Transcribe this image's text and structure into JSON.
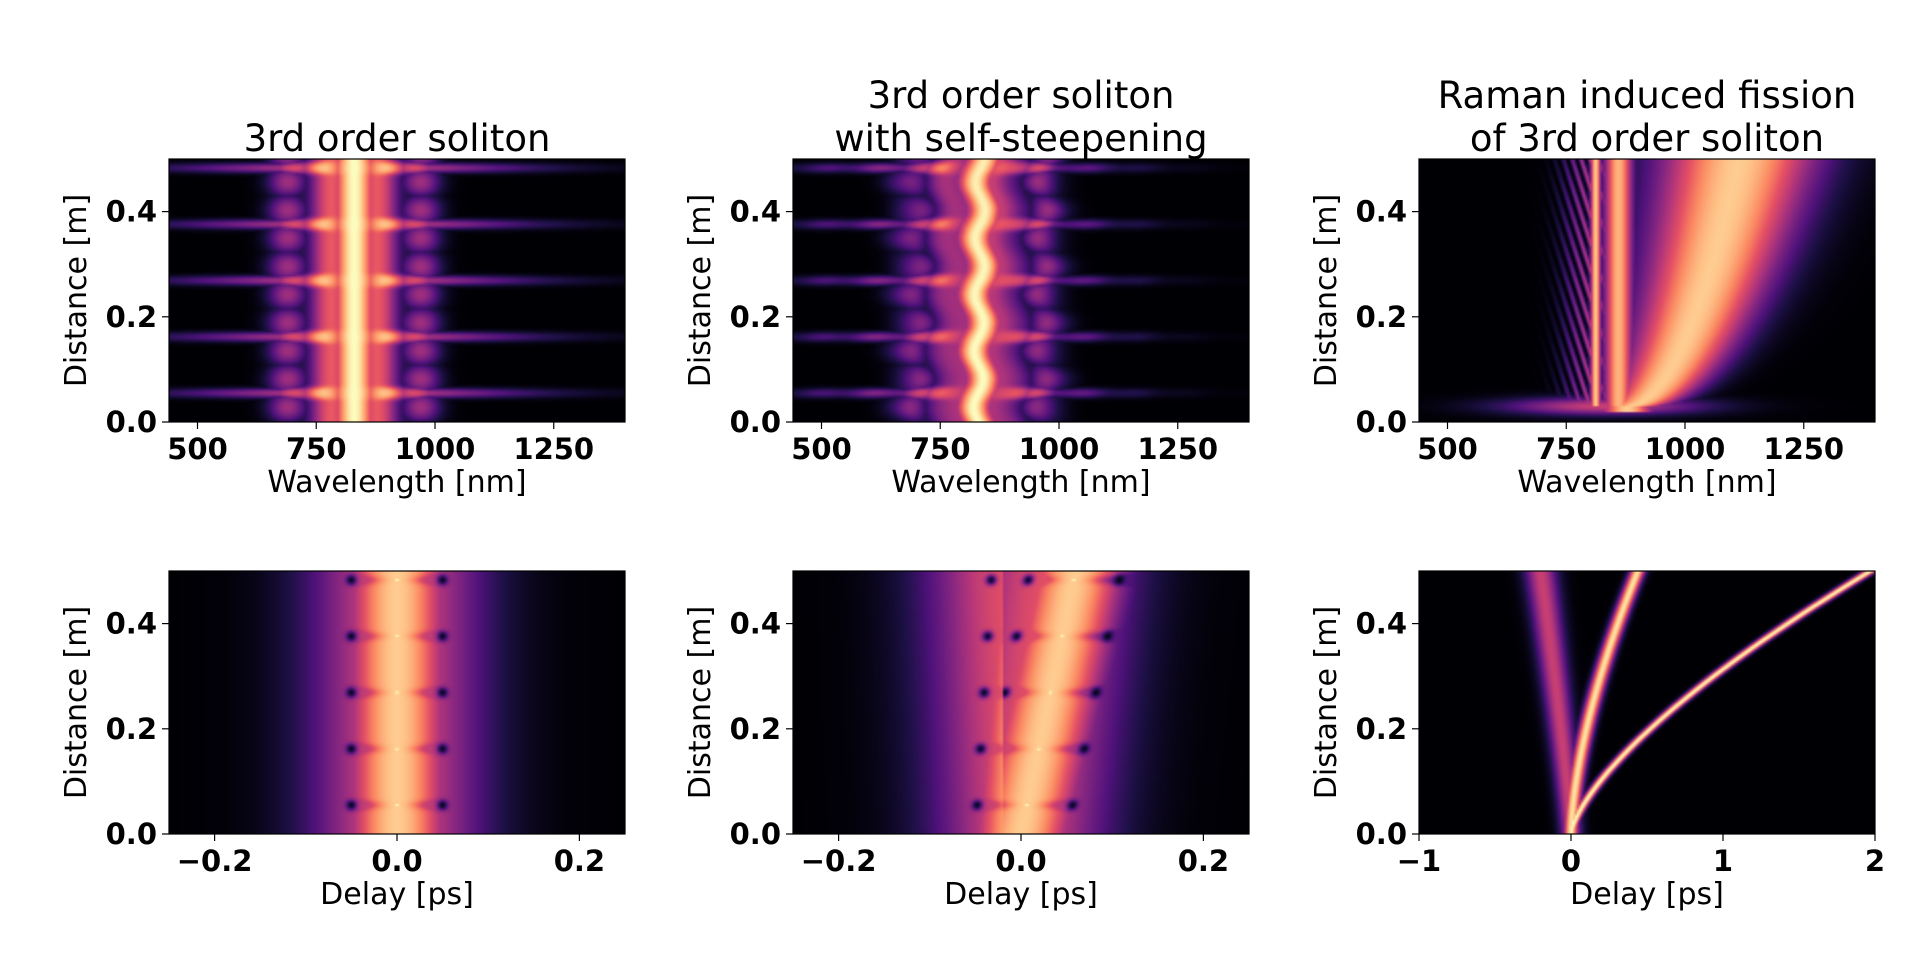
{
  "figure": {
    "rows": 2,
    "cols": 3,
    "colormap": "magma",
    "background": "#ffffff"
  },
  "chart_data": [
    {
      "type": "heatmap",
      "title": "3rd order soliton",
      "xlabel": "Wavelength [nm]",
      "ylabel": "Distance [m]",
      "xlim": [
        440,
        1400
      ],
      "ylim": [
        0,
        0.5
      ],
      "xticks": [
        500,
        750,
        1000,
        1250
      ],
      "xtick_labels": [
        "500",
        "750",
        "1000",
        "1250"
      ],
      "yticks": [
        0.0,
        0.2,
        0.4
      ],
      "ytick_labels": [
        "0.0",
        "0.2",
        "0.4"
      ],
      "pattern": "spectral-breathing",
      "center": 830,
      "period": 0.107,
      "phase": 0.055
    },
    {
      "type": "heatmap",
      "title": "3rd order soliton\nwith self-steepening",
      "xlabel": "Wavelength [nm]",
      "ylabel": "Distance [m]",
      "xlim": [
        440,
        1400
      ],
      "ylim": [
        0,
        0.5
      ],
      "xticks": [
        500,
        750,
        1000,
        1250
      ],
      "xtick_labels": [
        "500",
        "750",
        "1000",
        "1250"
      ],
      "yticks": [
        0.0,
        0.2,
        0.4
      ],
      "ytick_labels": [
        "0.0",
        "0.2",
        "0.4"
      ],
      "pattern": "spectral-breathing-steep",
      "center": 830,
      "period": 0.107,
      "phase": 0.055
    },
    {
      "type": "heatmap",
      "title": "Raman induced fission\nof 3rd order soliton",
      "xlabel": "Wavelength [nm]",
      "ylabel": "Distance [m]",
      "xlim": [
        440,
        1400
      ],
      "ylim": [
        0,
        0.5
      ],
      "xticks": [
        500,
        750,
        1000,
        1250
      ],
      "xtick_labels": [
        "500",
        "750",
        "1000",
        "1250"
      ],
      "yticks": [
        0.0,
        0.2,
        0.4
      ],
      "ytick_labels": [
        "0.0",
        "0.2",
        "0.4"
      ],
      "pattern": "spectral-fission",
      "center": 830,
      "fission_distance": 0.03
    },
    {
      "type": "heatmap",
      "title": "",
      "xlabel": "Delay [ps]",
      "ylabel": "Distance [m]",
      "xlim": [
        -0.25,
        0.25
      ],
      "ylim": [
        0,
        0.5
      ],
      "xticks": [
        -0.2,
        0.0,
        0.2
      ],
      "xtick_labels": [
        "−0.2",
        "0.0",
        "0.2"
      ],
      "yticks": [
        0.0,
        0.2,
        0.4
      ],
      "ytick_labels": [
        "0.0",
        "0.2",
        "0.4"
      ],
      "pattern": "temporal-breathing",
      "center": 0.0,
      "period": 0.107,
      "phase": 0.055
    },
    {
      "type": "heatmap",
      "title": "",
      "xlabel": "Delay [ps]",
      "ylabel": "Distance [m]",
      "xlim": [
        -0.25,
        0.25
      ],
      "ylim": [
        0,
        0.5
      ],
      "xticks": [
        -0.2,
        0.0,
        0.2
      ],
      "xtick_labels": [
        "−0.2",
        "0.0",
        "0.2"
      ],
      "yticks": [
        0.0,
        0.2,
        0.4
      ],
      "ytick_labels": [
        "0.0",
        "0.2",
        "0.4"
      ],
      "pattern": "temporal-breathing-drift",
      "center": 0.0,
      "drift_at_end": 0.06,
      "period": 0.107,
      "phase": 0.055
    },
    {
      "type": "heatmap",
      "title": "",
      "xlabel": "Delay [ps]",
      "ylabel": "Distance [m]",
      "xlim": [
        -1,
        2
      ],
      "ylim": [
        0,
        0.5
      ],
      "xticks": [
        -1,
        0,
        1,
        2
      ],
      "xtick_labels": [
        "−1",
        "0",
        "1",
        "2"
      ],
      "yticks": [
        0.0,
        0.2,
        0.4
      ],
      "ytick_labels": [
        "0.0",
        "0.2",
        "0.4"
      ],
      "pattern": "temporal-fission",
      "trajectories": [
        {
          "name": "",
          "delay_at_end": 1.97,
          "shape": "sqrt-curve"
        },
        {
          "name": "",
          "delay_at_end": 0.44,
          "shape": "curve"
        },
        {
          "name": "",
          "delay_at_end": -0.2,
          "shape": "dispersive"
        }
      ]
    }
  ]
}
